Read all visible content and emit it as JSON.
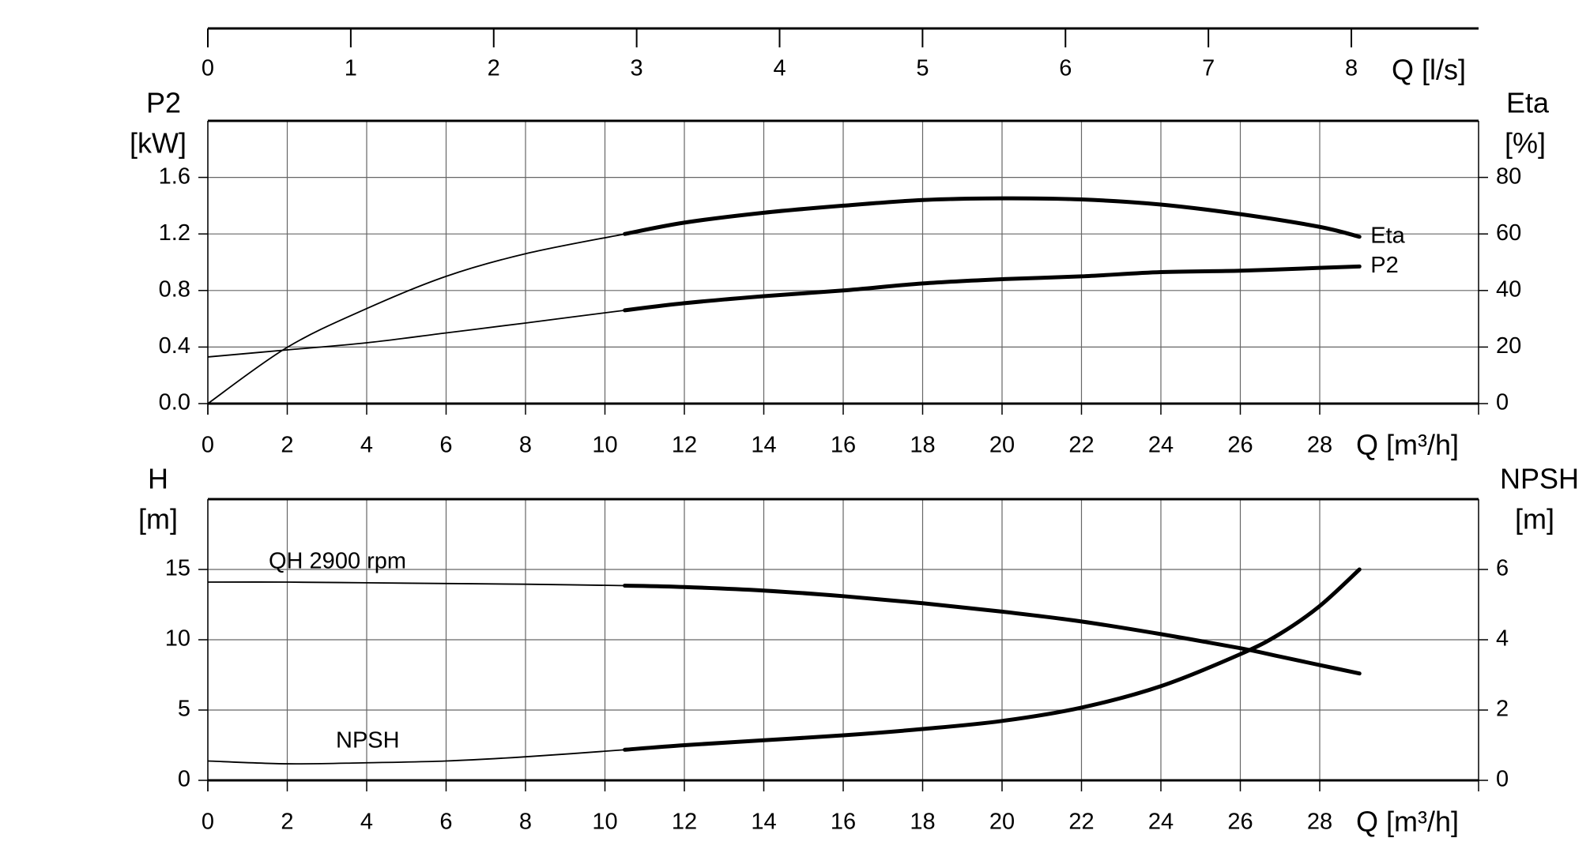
{
  "chart_data": [
    {
      "type": "line",
      "ylabel": [
        "P2",
        "[kW]"
      ],
      "y2label": [
        "Eta",
        "[%]"
      ],
      "xlabel": "Q [m³/h]",
      "x2label": "Q [l/s]",
      "xlim": [
        0,
        32
      ],
      "xticks": [
        0,
        2,
        4,
        6,
        8,
        10,
        12,
        14,
        16,
        18,
        20,
        22,
        24,
        26,
        28
      ],
      "x2lim": [
        0,
        8.89
      ],
      "x2ticks": [
        0,
        1,
        2,
        3,
        4,
        5,
        6,
        7,
        8
      ],
      "ylim": [
        0,
        2
      ],
      "yticks": [
        {
          "value": 0,
          "label": "0.0"
        },
        0.4,
        0.8,
        1.2,
        1.6
      ],
      "y2lim": [
        0,
        100
      ],
      "y2ticks": [
        0,
        20,
        40,
        60,
        80
      ],
      "grid": true,
      "operating_range": [
        10.5,
        29
      ],
      "x": [
        0,
        2,
        4,
        6,
        8,
        10.5,
        12,
        14,
        16,
        18,
        20,
        22,
        24,
        26,
        28,
        29
      ],
      "series": [
        {
          "name": "Eta",
          "axis": "y2",
          "color": "#000000",
          "values": [
            0,
            19.9,
            33.6,
            45,
            53,
            60,
            64,
            67.5,
            70,
            72,
            72.6,
            72.2,
            70.4,
            67,
            62.5,
            59
          ]
        },
        {
          "name": "P2",
          "color": "#000000",
          "values": [
            0.33,
            0.38,
            0.43,
            0.5,
            0.57,
            0.66,
            0.71,
            0.76,
            0.8,
            0.85,
            0.88,
            0.9,
            0.93,
            0.94,
            0.96,
            0.97
          ]
        }
      ]
    },
    {
      "type": "line",
      "ylabel": [
        "H",
        "[m]"
      ],
      "y2label": [
        "NPSH",
        "[m]"
      ],
      "xlabel": "Q [m³/h]",
      "xlim": [
        0,
        32
      ],
      "xticks": [
        0,
        2,
        4,
        6,
        8,
        10,
        12,
        14,
        16,
        18,
        20,
        22,
        24,
        26,
        28
      ],
      "ylim": [
        0,
        20
      ],
      "yticks": [
        0,
        5,
        10,
        15
      ],
      "y2lim": [
        0,
        8
      ],
      "y2ticks": [
        0,
        2,
        4,
        6
      ],
      "grid": true,
      "operating_range": [
        10.5,
        29
      ],
      "x": [
        0,
        2,
        4,
        6,
        8,
        10.5,
        12,
        14,
        16,
        18,
        20,
        22,
        24,
        26,
        27,
        28,
        29
      ],
      "series": [
        {
          "name": "QH 2900 rpm",
          "color": "#000000",
          "values": [
            14.1,
            14.1,
            14.05,
            14.0,
            13.95,
            13.85,
            13.75,
            13.5,
            13.1,
            12.6,
            12.0,
            11.3,
            10.4,
            9.4,
            8.8,
            8.2,
            7.6
          ]
        },
        {
          "name": "NPSH",
          "axis": "y2",
          "color": "#000000",
          "values": [
            0.55,
            0.47,
            0.5,
            0.55,
            0.67,
            0.87,
            1.0,
            1.14,
            1.28,
            1.46,
            1.69,
            2.07,
            2.68,
            3.59,
            4.17,
            4.96,
            6.0
          ]
        }
      ]
    }
  ]
}
